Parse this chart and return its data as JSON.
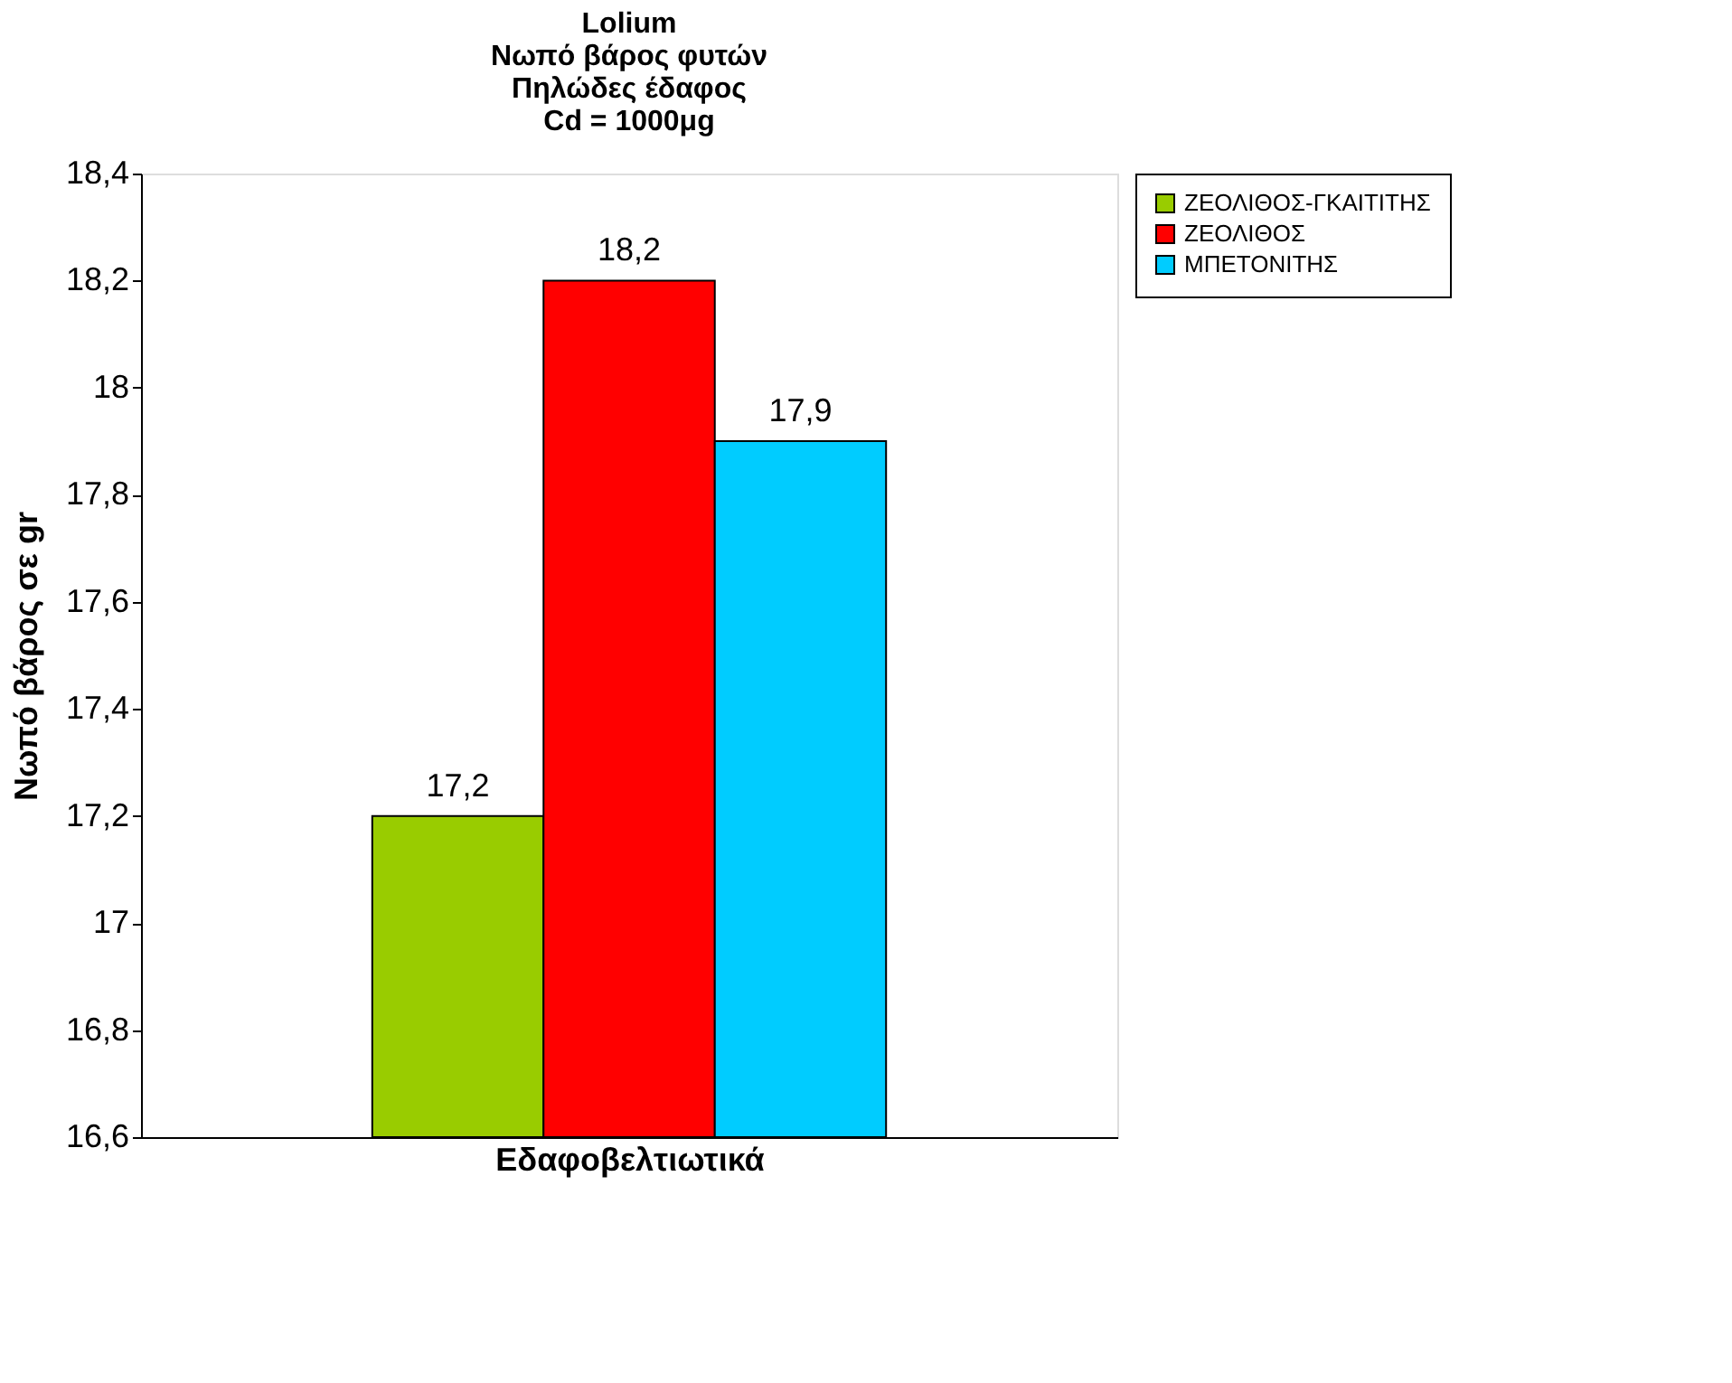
{
  "chart_data": {
    "type": "bar",
    "title": "Lolium\nΝωπό βάρος φυτών\nΠηλώδες έδαφος\nCd = 1000μg",
    "xlabel": "Εδαφοβελτιωτικά",
    "ylabel": "Νωπό βάρος σε gr",
    "categories": [
      null
    ],
    "series": [
      {
        "name": "ΖΕΟΛΙΘΟΣ-ΓΚΑΙΤΙΤΗΣ",
        "color": "#99cc00",
        "values": [
          17.2
        ],
        "value_labels": [
          "17,2"
        ]
      },
      {
        "name": "ΖΕΟΛΙΘΟΣ",
        "color": "#ff0000",
        "values": [
          18.2
        ],
        "value_labels": [
          "18,2"
        ]
      },
      {
        "name": "ΜΠΕΤΟΝΙΤΗΣ",
        "color": "#00ccff",
        "values": [
          17.9
        ],
        "value_labels": [
          "17,9"
        ]
      }
    ],
    "ylim": [
      16.6,
      18.4
    ],
    "yticks": [
      {
        "value": 16.6,
        "label": "16,6"
      },
      {
        "value": 16.8,
        "label": "16,8"
      },
      17,
      {
        "value": 17.2,
        "label": "17,2"
      },
      {
        "value": 17.4,
        "label": "17,4"
      },
      {
        "value": 17.6,
        "label": "17,6"
      },
      {
        "value": 17.8,
        "label": "17,8"
      },
      18,
      {
        "value": 18.2,
        "label": "18,2"
      },
      {
        "value": 18.4,
        "label": "18,4"
      }
    ],
    "grid": false,
    "legend": "right"
  }
}
